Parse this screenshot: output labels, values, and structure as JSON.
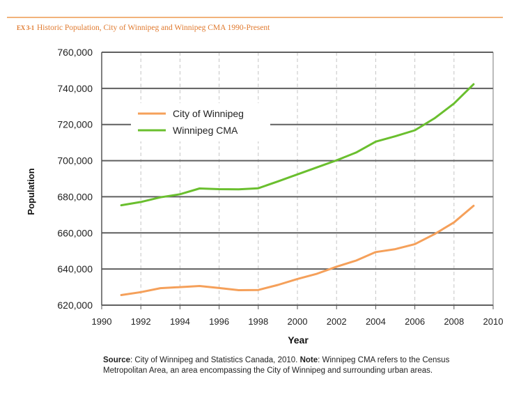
{
  "header": {
    "tag": "EX 3-1",
    "title": "Historic Population, City of Winnipeg and Winnipeg CMA 1990-Present"
  },
  "chart_data": {
    "type": "line",
    "title": "Historic Population, City of Winnipeg and Winnipeg CMA 1990-Present",
    "xlabel": "Year",
    "ylabel": "Population",
    "xlim": [
      1990,
      2010
    ],
    "ylim": [
      620000,
      760000
    ],
    "xticks": [
      1990,
      1992,
      1994,
      1996,
      1998,
      2000,
      2002,
      2004,
      2006,
      2008,
      2010
    ],
    "xtick_labels": [
      "1990",
      "1992",
      "1994",
      "1996",
      "1998",
      "2000",
      "2002",
      "2004",
      "2006",
      "2008",
      "2010"
    ],
    "yticks": [
      620000,
      640000,
      660000,
      680000,
      700000,
      720000,
      740000,
      760000
    ],
    "ytick_labels": [
      "620,000",
      "640,000",
      "660,000",
      "680,000",
      "700,000",
      "720,000",
      "740,000",
      "760,000"
    ],
    "x": [
      1991,
      1992,
      1993,
      1994,
      1995,
      1996,
      1997,
      1998,
      1999,
      2000,
      2001,
      2002,
      2003,
      2004,
      2005,
      2006,
      2007,
      2008,
      2009
    ],
    "series": [
      {
        "name": "City of Winnipeg",
        "color": "#f5a05a",
        "values": [
          625600,
          627200,
          629400,
          630000,
          630600,
          629500,
          628300,
          628400,
          631200,
          634500,
          637400,
          641300,
          644700,
          649400,
          651000,
          653800,
          659300,
          665800,
          675000
        ]
      },
      {
        "name": "Winnipeg CMA",
        "color": "#6abf2e",
        "values": [
          675300,
          677100,
          679700,
          681400,
          684600,
          684200,
          684100,
          684700,
          688500,
          692400,
          696300,
          700200,
          704500,
          710500,
          713500,
          716800,
          723400,
          731600,
          742300
        ]
      }
    ],
    "legend_position": "upper-left"
  },
  "note": {
    "source_label": "Source",
    "source_text": ": City of Winnipeg and Statistics Canada, 2010.  ",
    "note_label": "Note",
    "note_text": ": Winnipeg CMA refers to the Census Metropolitan Area, an area encompassing the City of Winnipeg and surrounding urban areas."
  }
}
